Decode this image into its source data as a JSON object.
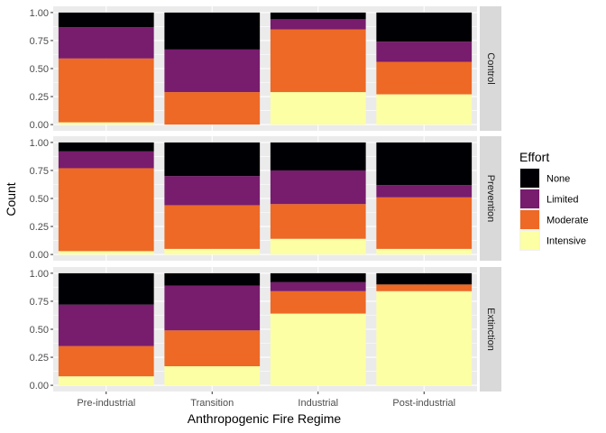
{
  "chart_data": {
    "type": "bar",
    "stacked": true,
    "xlabel": "Anthropogenic Fire Regime",
    "ylabel": "Count",
    "categories": [
      "Pre-industrial",
      "Transition",
      "Industrial",
      "Post-industrial"
    ],
    "ylim": [
      0,
      1
    ],
    "yticks": [
      "0.00",
      "0.25",
      "0.50",
      "0.75",
      "1.00"
    ],
    "grid": true,
    "legend": {
      "title": "Effort",
      "position": "right",
      "entries": [
        "None",
        "Limited",
        "Moderate",
        "Intensive"
      ]
    },
    "colors": {
      "None": "#000004",
      "Limited": "#781c6d",
      "Moderate": "#ed6925",
      "Intensive": "#fcffa4"
    },
    "panels": [
      {
        "label": "Control",
        "series": [
          {
            "name": "Intensive",
            "values": [
              0.02,
              0.0,
              0.29,
              0.27
            ]
          },
          {
            "name": "Moderate",
            "values": [
              0.57,
              0.29,
              0.56,
              0.29
            ]
          },
          {
            "name": "Limited",
            "values": [
              0.28,
              0.38,
              0.09,
              0.18
            ]
          },
          {
            "name": "None",
            "values": [
              0.13,
              0.33,
              0.06,
              0.26
            ]
          }
        ]
      },
      {
        "label": "Prevention",
        "series": [
          {
            "name": "Intensive",
            "values": [
              0.03,
              0.05,
              0.14,
              0.05
            ]
          },
          {
            "name": "Moderate",
            "values": [
              0.74,
              0.39,
              0.31,
              0.46
            ]
          },
          {
            "name": "Limited",
            "values": [
              0.15,
              0.26,
              0.3,
              0.11
            ]
          },
          {
            "name": "None",
            "values": [
              0.08,
              0.3,
              0.25,
              0.38
            ]
          }
        ]
      },
      {
        "label": "Extinction",
        "series": [
          {
            "name": "Intensive",
            "values": [
              0.08,
              0.17,
              0.64,
              0.84
            ]
          },
          {
            "name": "Moderate",
            "values": [
              0.27,
              0.32,
              0.2,
              0.06
            ]
          },
          {
            "name": "Limited",
            "values": [
              0.37,
              0.4,
              0.08,
              0.0
            ]
          },
          {
            "name": "None",
            "values": [
              0.28,
              0.11,
              0.08,
              0.1
            ]
          }
        ]
      }
    ]
  }
}
